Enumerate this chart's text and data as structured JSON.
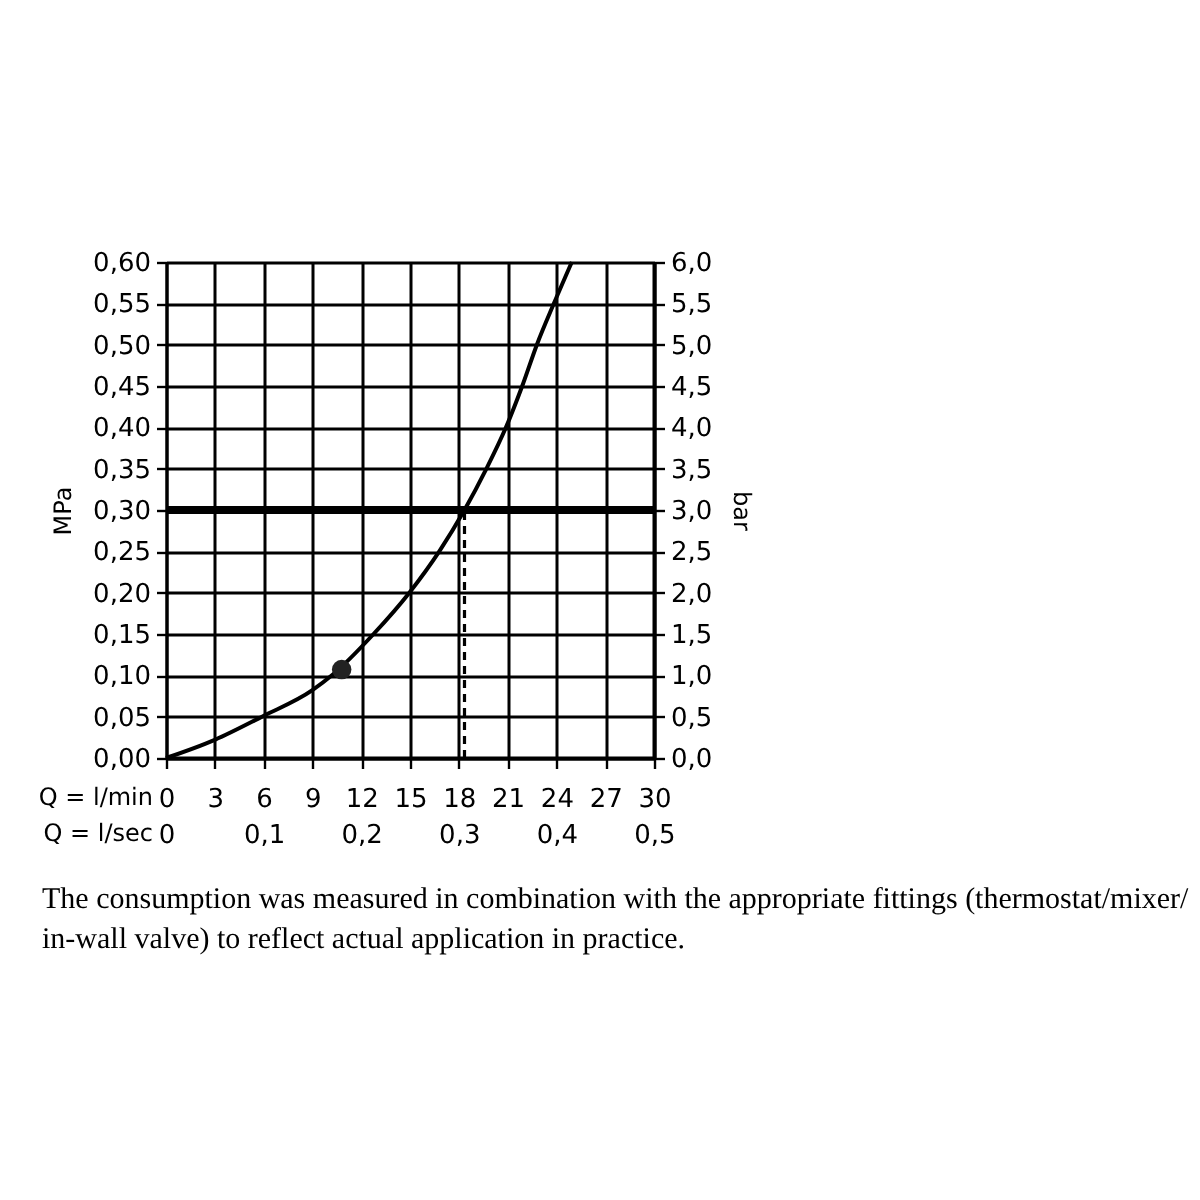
{
  "chart_data": {
    "type": "line",
    "xlabel": "Q = l/min",
    "ylabel": "MPa",
    "y2label": "bar",
    "x2label": "Q = l/sec",
    "xlim": [
      0,
      30
    ],
    "xticks": [
      0,
      3,
      6,
      9,
      12,
      15,
      18,
      21,
      24,
      27,
      30
    ],
    "ylim": [
      0,
      0.6
    ],
    "yticks": [
      {
        "value": 0,
        "label": "0,00"
      },
      {
        "value": 0.05,
        "label": "0,05"
      },
      {
        "value": 0.1,
        "label": "0,10"
      },
      {
        "value": 0.15,
        "label": "0,15"
      },
      {
        "value": 0.2,
        "label": "0,20"
      },
      {
        "value": 0.25,
        "label": "0,25"
      },
      {
        "value": 0.3,
        "label": "0,30"
      },
      {
        "value": 0.35,
        "label": "0,35"
      },
      {
        "value": 0.4,
        "label": "0,40"
      },
      {
        "value": 0.45,
        "label": "0,45"
      },
      {
        "value": 0.5,
        "label": "0,50"
      },
      {
        "value": 0.55,
        "label": "0,55"
      },
      {
        "value": 0.6,
        "label": "0,60"
      }
    ],
    "y2lim": [
      0,
      6
    ],
    "y2ticks": [
      {
        "value": 0,
        "label": "0,0"
      },
      {
        "value": 0.5,
        "label": "0,5"
      },
      {
        "value": 1,
        "label": "1,0"
      },
      {
        "value": 1.5,
        "label": "1,5"
      },
      {
        "value": 2,
        "label": "2,0"
      },
      {
        "value": 2.5,
        "label": "2,5"
      },
      {
        "value": 3,
        "label": "3,0"
      },
      {
        "value": 3.5,
        "label": "3,5"
      },
      {
        "value": 4,
        "label": "4,0"
      },
      {
        "value": 4.5,
        "label": "4,5"
      },
      {
        "value": 5,
        "label": "5,0"
      },
      {
        "value": 5.5,
        "label": "5,5"
      },
      {
        "value": 6,
        "label": "6,0"
      }
    ],
    "x2lim": [
      0,
      0.5
    ],
    "x2ticks": [
      0,
      {
        "value": 0.1,
        "label": "0,1"
      },
      {
        "value": 0.2,
        "label": "0,2"
      },
      {
        "value": 0.3,
        "label": "0,3"
      },
      {
        "value": 0.4,
        "label": "0,4"
      },
      {
        "value": 0.5,
        "label": "0,5"
      }
    ],
    "grid": true,
    "series": [
      {
        "color": "#000000",
        "marker": "none",
        "x": [
          0,
          3,
          5.9,
          9,
          10.2,
          12.76,
          14.96,
          16.8,
          18.35,
          19.7,
          20.9,
          21.9,
          22.8,
          23.85,
          24.95
        ],
        "values": [
          0,
          0.022,
          0.05,
          0.082,
          0.1,
          0.15,
          0.2,
          0.25,
          0.3,
          0.35,
          0.4,
          0.45,
          0.5,
          0.55,
          0.6
        ]
      },
      {
        "type": "scatter",
        "color": "#222222",
        "marker": "circle",
        "x": [
          10.8
        ],
        "values": [
          0.107
        ]
      },
      {
        "type": "line",
        "color": "#000000",
        "line_style": "dashed",
        "x": [
          18.35,
          18.35
        ],
        "values": [
          0,
          0.3
        ]
      }
    ],
    "ref_lines": [
      {
        "axis": "y",
        "value": 0.3,
        "color": "#000000"
      }
    ],
    "annotations": [
      "The consumption was measured in combination with the appropriate fittings (thermostat/mixer/in-wall valve) to reflect actual application in practice."
    ]
  }
}
